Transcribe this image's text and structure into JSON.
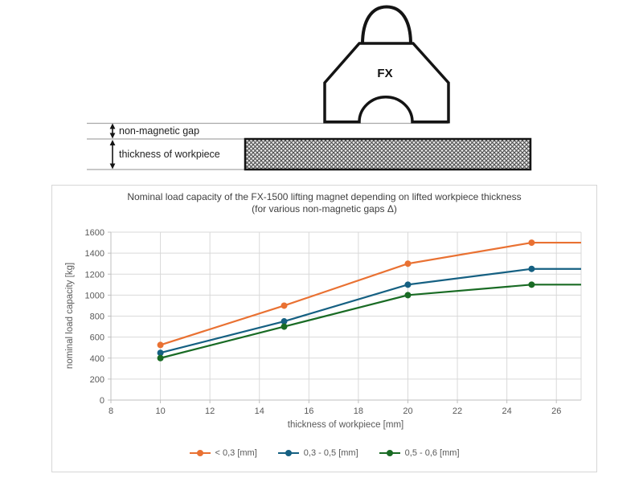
{
  "diagram": {
    "magnet_label": "FX",
    "gap_label": "non-magnetic gap",
    "thickness_label": "thickness of workpiece"
  },
  "chart_data": {
    "type": "line",
    "title": "Nominal load capacity of the FX-1500 lifting magnet depending on lifted workpiece thickness",
    "subtitle": "(for various non-magnetic gaps Δ)",
    "xlabel": "thickness of workpiece [mm]",
    "ylabel": "nominal load capacity [kg]",
    "x": [
      10,
      15,
      20,
      25
    ],
    "series": [
      {
        "name": "< 0,3 [mm]",
        "color": "#E97132",
        "values": [
          525,
          900,
          1300,
          1500
        ]
      },
      {
        "name": "0,3 - 0,5 [mm]",
        "color": "#156082",
        "values": [
          450,
          750,
          1100,
          1250
        ]
      },
      {
        "name": "0,5 - 0,6 [mm]",
        "color": "#196B24",
        "values": [
          400,
          700,
          1000,
          1100
        ]
      }
    ],
    "lines_extend_flat_to_x": 27,
    "xlim": [
      8,
      27
    ],
    "ylim": [
      0,
      1600
    ],
    "x_ticks": [
      8,
      10,
      12,
      14,
      16,
      18,
      20,
      22,
      24,
      26
    ],
    "y_ticks": [
      0,
      200,
      400,
      600,
      800,
      1000,
      1200,
      1400,
      1600
    ],
    "grid": true,
    "legend_position": "bottom-center",
    "gridline_color": "#d9d9d9",
    "axis_color": "#bfbfbf",
    "text_color": "#595959"
  }
}
